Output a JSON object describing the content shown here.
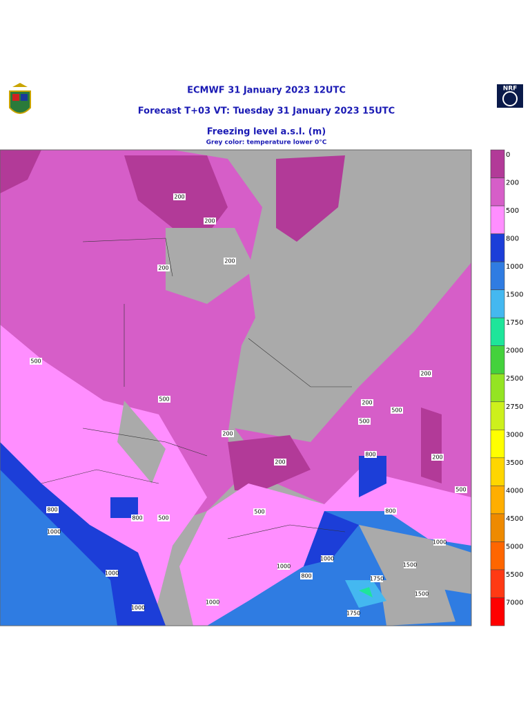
{
  "header": {
    "title": "ECMWF 31 January 2023 12UTC",
    "forecast": "Forecast T+03 VT: Tuesday 31 January 2023 15UTC",
    "parameter": "Freezing level a.s.l. (m)",
    "note": "Grey color: temperature lower 0°C",
    "logo_right": "NRF"
  },
  "colorbar": {
    "levels": [
      0,
      200,
      500,
      800,
      1000,
      1500,
      1750,
      2000,
      2500,
      2750,
      3000,
      3500,
      4000,
      4500,
      5000,
      5500,
      7000
    ],
    "colors": [
      "#b23a98",
      "#d65ec8",
      "#ff8eff",
      "#1c3ed8",
      "#2f7ce2",
      "#44b8f0",
      "#1ee59a",
      "#44d23c",
      "#94e422",
      "#cdf01c",
      "#ffff00",
      "#ffd600",
      "#ffae00",
      "#ee8a00",
      "#ff6600",
      "#ff3a14",
      "#ff0000"
    ]
  },
  "map": {
    "contour_labels": [
      "200",
      "200",
      "200",
      "200",
      "200",
      "200",
      "200",
      "200",
      "200",
      "500",
      "500",
      "500",
      "500",
      "500",
      "500",
      "500",
      "800",
      "800",
      "800",
      "800",
      "800",
      "1000",
      "1000",
      "1000",
      "1000",
      "1000",
      "1000",
      "1000",
      "1500",
      "1500",
      "1750",
      "1750"
    ]
  }
}
